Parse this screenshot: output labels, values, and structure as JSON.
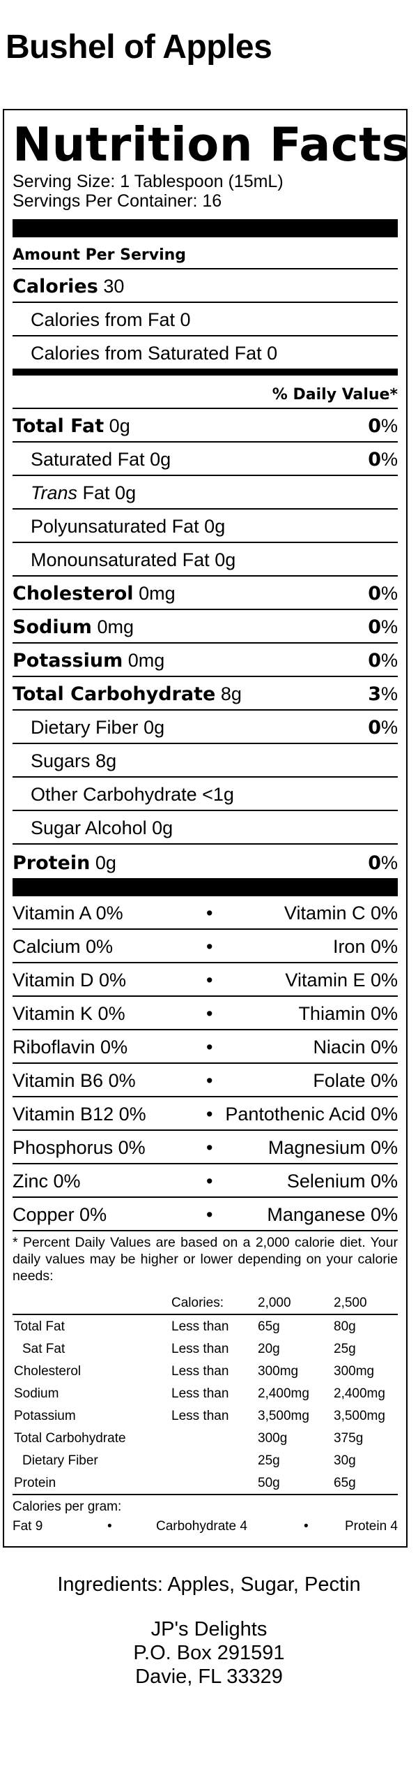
{
  "product_name": "Bushel of Apples",
  "label": {
    "title": "Nutrition Facts",
    "serving_size": "Serving Size: 1 Tablespoon (15mL)",
    "servings_per_container": "Servings Per Container: 16",
    "amount_per_serving": "Amount Per Serving",
    "calories_label": "Calories",
    "calories_value": "30",
    "calories_from_fat": "Calories from Fat 0",
    "calories_from_sat_fat": "Calories from Saturated Fat 0",
    "daily_value_header": "% Daily Value*",
    "nutrients": [
      {
        "name": "Total Fat",
        "amount": "0g",
        "dv": "0",
        "bold": true,
        "indent": false
      },
      {
        "name": "Saturated Fat",
        "amount": "0g",
        "dv": "0",
        "bold": false,
        "indent": true
      },
      {
        "name": "Trans",
        "name_suffix": " Fat",
        "amount": "0g",
        "dv": "",
        "bold": false,
        "indent": true,
        "italic_prefix": true
      },
      {
        "name": "Polyunsaturated Fat",
        "amount": "0g",
        "dv": "",
        "bold": false,
        "indent": true
      },
      {
        "name": "Monounsaturated Fat",
        "amount": "0g",
        "dv": "",
        "bold": false,
        "indent": true
      },
      {
        "name": "Cholesterol",
        "amount": "0mg",
        "dv": "0",
        "bold": true,
        "indent": false
      },
      {
        "name": "Sodium",
        "amount": "0mg",
        "dv": "0",
        "bold": true,
        "indent": false
      },
      {
        "name": "Potassium",
        "amount": "0mg",
        "dv": "0",
        "bold": true,
        "indent": false
      },
      {
        "name": "Total Carbohydrate",
        "amount": "8g",
        "dv": "3",
        "bold": true,
        "indent": false
      },
      {
        "name": "Dietary Fiber",
        "amount": "0g",
        "dv": "0",
        "bold": false,
        "indent": true
      },
      {
        "name": "Sugars",
        "amount": "8g",
        "dv": "",
        "bold": false,
        "indent": true
      },
      {
        "name": "Other Carbohydrate",
        "amount": "<1g",
        "dv": "",
        "bold": false,
        "indent": true
      },
      {
        "name": "Sugar Alcohol",
        "amount": "0g",
        "dv": "",
        "bold": false,
        "indent": true
      },
      {
        "name": "Protein",
        "amount": "0g",
        "dv": "0",
        "bold": true,
        "indent": false
      }
    ],
    "vitamins": [
      {
        "left": "Vitamin A 0%",
        "right": "Vitamin C 0%"
      },
      {
        "left": "Calcium 0%",
        "right": "Iron 0%"
      },
      {
        "left": "Vitamin D 0%",
        "right": "Vitamin E 0%"
      },
      {
        "left": "Vitamin K 0%",
        "right": "Thiamin 0%"
      },
      {
        "left": "Riboflavin 0%",
        "right": "Niacin 0%"
      },
      {
        "left": "Vitamin B6 0%",
        "right": "Folate 0%"
      },
      {
        "left": "Vitamin B12 0%",
        "right": "Pantothenic Acid 0%"
      },
      {
        "left": "Phosphorus 0%",
        "right": "Magnesium 0%"
      },
      {
        "left": "Zinc 0%",
        "right": "Selenium 0%"
      },
      {
        "left": "Copper 0%",
        "right": "Manganese 0%"
      }
    ],
    "bullet": "•",
    "footnote": "* Percent Daily Values are based on a 2,000 calorie diet. Your daily values may be higher or lower depending on your calorie needs:",
    "footnote_table": {
      "header": [
        "",
        "Calories:",
        "2,000",
        "2,500"
      ],
      "rows": [
        {
          "name": "Total Fat",
          "qual": "Less than",
          "v1": "65g",
          "v2": "80g",
          "indent": false
        },
        {
          "name": "Sat Fat",
          "qual": "Less than",
          "v1": "20g",
          "v2": "25g",
          "indent": true
        },
        {
          "name": "Cholesterol",
          "qual": "Less than",
          "v1": "300mg",
          "v2": "300mg",
          "indent": false
        },
        {
          "name": "Sodium",
          "qual": "Less than",
          "v1": "2,400mg",
          "v2": "2,400mg",
          "indent": false
        },
        {
          "name": "Potassium",
          "qual": "Less than",
          "v1": "3,500mg",
          "v2": "3,500mg",
          "indent": false
        },
        {
          "name": "Total Carbohydrate",
          "qual": "",
          "v1": "300g",
          "v2": "375g",
          "indent": false
        },
        {
          "name": "Dietary Fiber",
          "qual": "",
          "v1": "25g",
          "v2": "30g",
          "indent": true
        },
        {
          "name": "Protein",
          "qual": "",
          "v1": "50g",
          "v2": "65g",
          "indent": false
        }
      ]
    },
    "calories_per_gram": "Calories per gram:",
    "cpg_fat": "Fat 9",
    "cpg_carb": "Carbohydrate 4",
    "cpg_protein": "Protein 4"
  },
  "ingredients": "Ingredients: Apples, Sugar, Pectin",
  "company": {
    "name": "JP's Delights",
    "address1": "P.O. Box 291591",
    "address2": "Davie, FL 33329"
  }
}
